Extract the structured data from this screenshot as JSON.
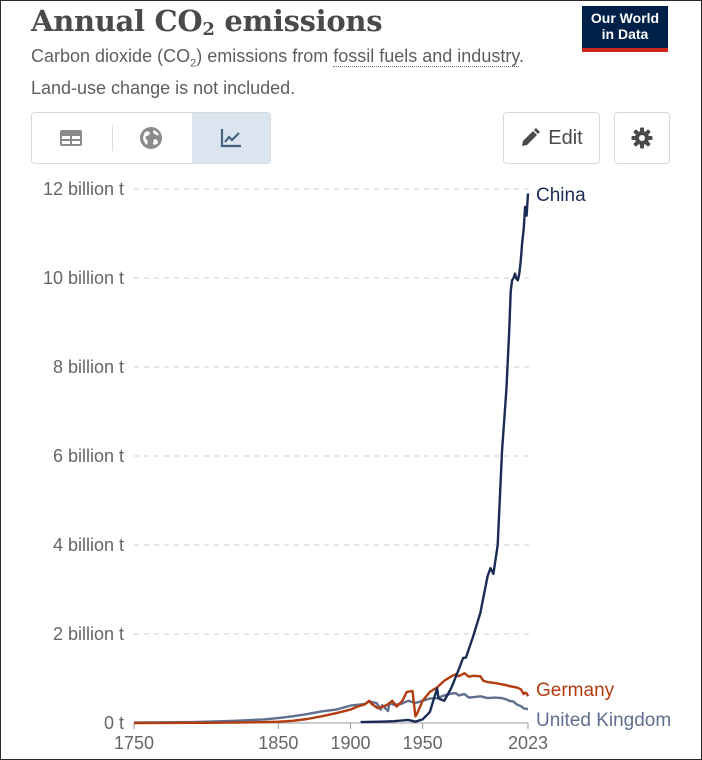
{
  "header": {
    "title_main": "Annual CO",
    "title_sub": "2",
    "title_end": " emissions",
    "subtitle_a": "Carbon dioxide (CO",
    "subtitle_sub": "2",
    "subtitle_b": ") emissions from ",
    "subtitle_link": "fossil fuels and industry",
    "subtitle_c": ". Land-use change is not included.",
    "logo_line1": "Our World",
    "logo_line2": "in Data"
  },
  "toolbar": {
    "edit_label": "Edit",
    "tabs": [
      {
        "icon": "table-icon",
        "active": false
      },
      {
        "icon": "globe-icon",
        "active": false
      },
      {
        "icon": "line-chart-icon",
        "active": true
      }
    ],
    "settings_icon": "gear-icon"
  },
  "chart_data": {
    "type": "line",
    "title": "Annual CO₂ emissions",
    "xlim": [
      1750,
      2023
    ],
    "ylim": [
      0,
      12
    ],
    "x_ticks": [
      1750,
      1850,
      1900,
      1950,
      2023
    ],
    "y_ticks": [
      {
        "value": 0,
        "label": "0 t"
      },
      {
        "value": 2,
        "label": "2 billion t"
      },
      {
        "value": 4,
        "label": "4 billion t"
      },
      {
        "value": 6,
        "label": "6 billion t"
      },
      {
        "value": 8,
        "label": "8 billion t"
      },
      {
        "value": 10,
        "label": "10 billion t"
      },
      {
        "value": 12,
        "label": "12 billion t"
      }
    ],
    "grid": true,
    "legend": "inline-right",
    "series": [
      {
        "name": "China",
        "color": "#1a2c56",
        "points": [
          [
            1907,
            0.02
          ],
          [
            1920,
            0.03
          ],
          [
            1930,
            0.04
          ],
          [
            1937,
            0.06
          ],
          [
            1940,
            0.07
          ],
          [
            1945,
            0.03
          ],
          [
            1950,
            0.08
          ],
          [
            1955,
            0.25
          ],
          [
            1960,
            0.78
          ],
          [
            1961,
            0.55
          ],
          [
            1965,
            0.5
          ],
          [
            1970,
            0.8
          ],
          [
            1975,
            1.2
          ],
          [
            1978,
            1.46
          ],
          [
            1980,
            1.47
          ],
          [
            1985,
            1.95
          ],
          [
            1990,
            2.48
          ],
          [
            1995,
            3.3
          ],
          [
            1997,
            3.48
          ],
          [
            1999,
            3.35
          ],
          [
            2002,
            4.0
          ],
          [
            2005,
            6.1
          ],
          [
            2008,
            7.5
          ],
          [
            2010,
            8.8
          ],
          [
            2011,
            9.7
          ],
          [
            2012,
            9.95
          ],
          [
            2013,
            10.0
          ],
          [
            2014,
            10.1
          ],
          [
            2015,
            9.98
          ],
          [
            2016,
            9.95
          ],
          [
            2017,
            10.1
          ],
          [
            2018,
            10.4
          ],
          [
            2019,
            10.8
          ],
          [
            2020,
            11.1
          ],
          [
            2021,
            11.6
          ],
          [
            2022,
            11.4
          ],
          [
            2023,
            11.9
          ]
        ]
      },
      {
        "name": "Germany",
        "color": "#b33c10",
        "points": [
          [
            1750,
            0
          ],
          [
            1800,
            0.005
          ],
          [
            1820,
            0.01
          ],
          [
            1840,
            0.02
          ],
          [
            1850,
            0.03
          ],
          [
            1860,
            0.05
          ],
          [
            1870,
            0.09
          ],
          [
            1880,
            0.15
          ],
          [
            1890,
            0.22
          ],
          [
            1900,
            0.3
          ],
          [
            1905,
            0.37
          ],
          [
            1910,
            0.42
          ],
          [
            1913,
            0.5
          ],
          [
            1915,
            0.42
          ],
          [
            1919,
            0.33
          ],
          [
            1925,
            0.4
          ],
          [
            1929,
            0.5
          ],
          [
            1932,
            0.37
          ],
          [
            1936,
            0.5
          ],
          [
            1939,
            0.7
          ],
          [
            1943,
            0.72
          ],
          [
            1945,
            0.15
          ],
          [
            1946,
            0.2
          ],
          [
            1950,
            0.5
          ],
          [
            1955,
            0.7
          ],
          [
            1960,
            0.8
          ],
          [
            1965,
            0.95
          ],
          [
            1970,
            1.05
          ],
          [
            1973,
            1.1
          ],
          [
            1975,
            1.05
          ],
          [
            1979,
            1.12
          ],
          [
            1982,
            1.04
          ],
          [
            1985,
            1.06
          ],
          [
            1990,
            1.05
          ],
          [
            1992,
            0.95
          ],
          [
            1995,
            0.92
          ],
          [
            2000,
            0.9
          ],
          [
            2005,
            0.87
          ],
          [
            2008,
            0.85
          ],
          [
            2010,
            0.83
          ],
          [
            2015,
            0.8
          ],
          [
            2018,
            0.76
          ],
          [
            2020,
            0.65
          ],
          [
            2021,
            0.68
          ],
          [
            2022,
            0.67
          ],
          [
            2023,
            0.6
          ]
        ]
      },
      {
        "name": "United Kingdom",
        "color": "#5e6f8f",
        "points": [
          [
            1750,
            0.01
          ],
          [
            1770,
            0.015
          ],
          [
            1790,
            0.02
          ],
          [
            1800,
            0.03
          ],
          [
            1820,
            0.05
          ],
          [
            1840,
            0.08
          ],
          [
            1850,
            0.11
          ],
          [
            1860,
            0.15
          ],
          [
            1870,
            0.2
          ],
          [
            1880,
            0.26
          ],
          [
            1890,
            0.3
          ],
          [
            1900,
            0.39
          ],
          [
            1905,
            0.41
          ],
          [
            1910,
            0.43
          ],
          [
            1913,
            0.48
          ],
          [
            1918,
            0.45
          ],
          [
            1920,
            0.36
          ],
          [
            1921,
            0.3
          ],
          [
            1922,
            0.4
          ],
          [
            1926,
            0.27
          ],
          [
            1927,
            0.45
          ],
          [
            1930,
            0.41
          ],
          [
            1935,
            0.43
          ],
          [
            1940,
            0.5
          ],
          [
            1945,
            0.45
          ],
          [
            1950,
            0.5
          ],
          [
            1955,
            0.55
          ],
          [
            1960,
            0.56
          ],
          [
            1965,
            0.62
          ],
          [
            1970,
            0.66
          ],
          [
            1973,
            0.67
          ],
          [
            1975,
            0.62
          ],
          [
            1979,
            0.65
          ],
          [
            1982,
            0.57
          ],
          [
            1985,
            0.58
          ],
          [
            1990,
            0.6
          ],
          [
            1995,
            0.56
          ],
          [
            2000,
            0.57
          ],
          [
            2005,
            0.56
          ],
          [
            2008,
            0.53
          ],
          [
            2010,
            0.5
          ],
          [
            2013,
            0.48
          ],
          [
            2015,
            0.42
          ],
          [
            2018,
            0.38
          ],
          [
            2020,
            0.33
          ],
          [
            2023,
            0.31
          ]
        ]
      }
    ]
  }
}
